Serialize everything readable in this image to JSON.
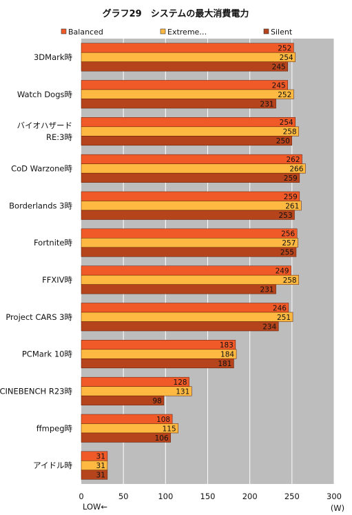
{
  "chart_data": {
    "type": "bar",
    "orientation": "horizontal",
    "title": "グラフ29　システムの最大消費電力",
    "categories": [
      [
        "3DMark時"
      ],
      [
        "Watch Dogs時"
      ],
      [
        "バイオハザード",
        "RE:3時"
      ],
      [
        "CoD Warzone時"
      ],
      [
        "Borderlands 3時"
      ],
      [
        "Fortnite時"
      ],
      [
        "FFXIV時"
      ],
      [
        "Project CARS 3時"
      ],
      [
        "PCMark 10時"
      ],
      [
        "CINEBENCH  R23時"
      ],
      [
        "ffmpeg時"
      ],
      [
        "アイドル時"
      ]
    ],
    "series": [
      {
        "name": "Balanced",
        "color": "#f05a28",
        "values": [
          252,
          245,
          254,
          262,
          259,
          256,
          249,
          246,
          183,
          128,
          108,
          31
        ]
      },
      {
        "name": "Extreme…",
        "color": "#fdb941",
        "values": [
          254,
          252,
          258,
          266,
          261,
          257,
          258,
          251,
          184,
          131,
          115,
          31
        ]
      },
      {
        "name": "Silent",
        "color": "#b5441c",
        "values": [
          245,
          231,
          250,
          259,
          253,
          255,
          231,
          234,
          181,
          98,
          106,
          31
        ]
      }
    ],
    "xlim": [
      0,
      300
    ],
    "xticks": [
      0,
      50,
      100,
      150,
      200,
      250,
      300
    ],
    "xunit": "(W)",
    "xnote": "LOW←",
    "grid": true,
    "legend": "top"
  }
}
